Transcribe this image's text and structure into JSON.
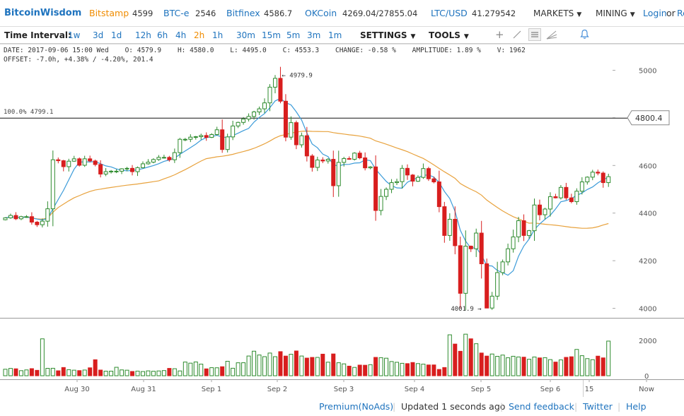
{
  "header": {
    "logo": "BitcoinWisdom",
    "markets": [
      {
        "name": "Bitstamp",
        "price": "4599",
        "color": "#f08c00"
      },
      {
        "name": "BTC-e",
        "price": "2546",
        "color": "#1e73be"
      },
      {
        "name": "Bitfinex",
        "price": "4586.7",
        "color": "#1e73be"
      },
      {
        "name": "OKCoin",
        "price": "4269.04/27855.04",
        "color": "#1e73be"
      },
      {
        "name": "LTC/USD",
        "price": "41.279542",
        "color": "#1e73be"
      }
    ],
    "menus": [
      "MARKETS",
      "MINING"
    ],
    "login": "Login",
    "login_sep": "or",
    "register_partial": "Re"
  },
  "toolbar": {
    "interval_label": "Time Interval:",
    "intervals": [
      "1w",
      "3d",
      "1d",
      "12h",
      "6h",
      "4h",
      "2h",
      "1h",
      "30m",
      "15m",
      "5m",
      "3m",
      "1m"
    ],
    "active_interval": "2h",
    "settings": "SETTINGS",
    "tools": "TOOLS",
    "tool_icons": [
      "crosshair-icon",
      "line-draw-icon",
      "menu-lines-icon",
      "fan-icon",
      "bell-icon"
    ]
  },
  "info": {
    "line1": "DATE: 2017-09-06 15:00 Wed    O: 4579.9    H: 4580.0    L: 4495.0    C: 4553.3    CHANGE: -0.58 %    AMPLITUDE: 1.89 %    V: 1962",
    "line2": "OFFSET: -7.0h, +4.38% / -4.20%, 201.4"
  },
  "chart_data": {
    "type": "candlestick",
    "price_axis_ticks": [
      4000,
      4200,
      4400,
      4600,
      4800,
      5000
    ],
    "price_range": [
      3960,
      5040
    ],
    "volume_axis_ticks": [
      0,
      2000
    ],
    "volume_range": [
      0,
      3200
    ],
    "x_labels": [
      "Aug 30",
      "Aug 31",
      "Sep 1",
      "Sep 2",
      "Sep 3",
      "Sep 4",
      "Sep 5",
      "Sep 6",
      "15",
      "Now"
    ],
    "current_price_label": "4800.4",
    "fib_line": {
      "label": "100.0% 4799.1",
      "value": 4799.1
    },
    "annotations": [
      {
        "text": "← 4979.9",
        "value": 4979.9,
        "kind": "high"
      },
      {
        "text": "4001.9 →",
        "value": 4001.9,
        "kind": "low"
      }
    ],
    "closes": [
      4380,
      4390,
      4376,
      4385,
      4385,
      4362,
      4351,
      4366,
      4418,
      4624,
      4620,
      4595,
      4618,
      4628,
      4601,
      4628,
      4619,
      4604,
      4564,
      4574,
      4576,
      4576,
      4586,
      4588,
      4574,
      4591,
      4607,
      4614,
      4625,
      4634,
      4634,
      4624,
      4654,
      4710,
      4710,
      4719,
      4721,
      4726,
      4718,
      4730,
      4750,
      4667,
      4720,
      4766,
      4781,
      4795,
      4806,
      4825,
      4838,
      4863,
      4929,
      4966,
      4870,
      4719,
      4780,
      4687,
      4725,
      4640,
      4592,
      4623,
      4619,
      4626,
      4515,
      4613,
      4629,
      4626,
      4652,
      4632,
      4590,
      4594,
      4411,
      4470,
      4500,
      4528,
      4532,
      4588,
      4560,
      4534,
      4550,
      4587,
      4544,
      4531,
      4427,
      4306,
      4374,
      4263,
      4063,
      4261,
      4250,
      4316,
      4187,
      4001,
      4051,
      4150,
      4195,
      4250,
      4300,
      4368,
      4306,
      4326,
      4434,
      4393,
      4417,
      4469,
      4464,
      4508,
      4464,
      4448,
      4492,
      4531,
      4551,
      4572,
      4568,
      4528,
      4553
    ],
    "volumes": [
      368,
      415,
      392,
      287,
      330,
      401,
      306,
      2090,
      420,
      423,
      280,
      466,
      344,
      315,
      290,
      323,
      448,
      906,
      321,
      259,
      260,
      478,
      330,
      314,
      241,
      263,
      237,
      276,
      254,
      272,
      293,
      416,
      398,
      273,
      776,
      713,
      781,
      658,
      389,
      457,
      451,
      510,
      820,
      425,
      734,
      737,
      1117,
      1390,
      1175,
      1081,
      1285,
      1079,
      1364,
      1113,
      1217,
      1402,
      1117,
      999,
      1037,
      1038,
      1222,
      768,
      1234,
      736,
      673,
      543,
      472,
      602,
      594,
      627,
      1039,
      1024,
      993,
      805,
      762,
      704,
      686,
      749,
      688,
      657,
      610,
      612,
      356,
      465,
      2318,
      1794,
      1385,
      2354,
      2091,
      1814,
      1286,
      1113,
      1231,
      1100,
      1171,
      1018,
      1103,
      1064,
      1051,
      935,
      1062,
      1009,
      1024,
      914,
      773,
      897,
      1040,
      1074,
      1491,
      1136,
      969,
      909,
      1110,
      1011,
      1962
    ]
  },
  "footer": {
    "premium": "Premium(NoAds)",
    "status": "Updated 1 seconds ago",
    "feedback": "Send feedback",
    "twitter": "Twitter",
    "help": "Help"
  }
}
